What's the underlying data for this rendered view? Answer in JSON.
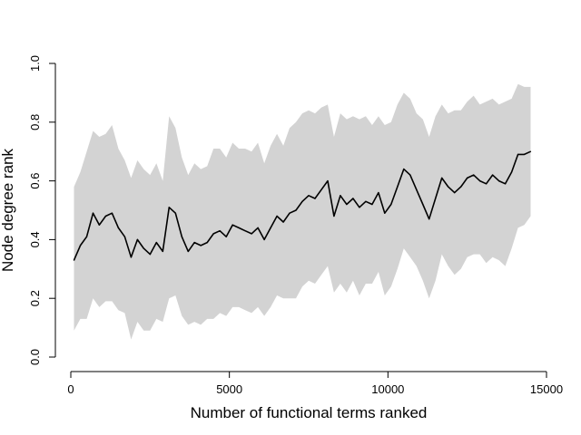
{
  "chart_data": {
    "type": "line",
    "title": "",
    "xlabel": "Number of functional terms ranked",
    "ylabel": "Node degree rank",
    "xlim": [
      0,
      15000
    ],
    "ylim": [
      0.0,
      1.0
    ],
    "x_ticks": [
      0,
      5000,
      10000,
      15000
    ],
    "y_ticks": [
      0.0,
      0.2,
      0.4,
      0.6,
      0.8,
      1.0
    ],
    "x_tick_labels": [
      "0",
      "5000",
      "10000",
      "15000"
    ],
    "y_tick_labels": [
      "0.0",
      "0.2",
      "0.4",
      "0.6",
      "0.8",
      "1.0"
    ],
    "grid": false,
    "legend": "none",
    "colors": {
      "line": "#000000",
      "band": "#d3d3d3"
    },
    "series": [
      {
        "role": "line",
        "x": [
          100,
          300,
          500,
          700,
          900,
          1100,
          1300,
          1500,
          1700,
          1900,
          2100,
          2300,
          2500,
          2700,
          2900,
          3100,
          3300,
          3500,
          3700,
          3900,
          4100,
          4300,
          4500,
          4700,
          4900,
          5100,
          5300,
          5500,
          5700,
          5900,
          6100,
          6300,
          6500,
          6700,
          6900,
          7100,
          7300,
          7500,
          7700,
          7900,
          8100,
          8300,
          8500,
          8700,
          8900,
          9100,
          9300,
          9500,
          9700,
          9900,
          10100,
          10300,
          10500,
          10700,
          10900,
          11100,
          11300,
          11500,
          11700,
          11900,
          12100,
          12300,
          12500,
          12700,
          12900,
          13100,
          13300,
          13500,
          13700,
          13900,
          14100,
          14300,
          14500
        ],
        "y": [
          0.33,
          0.38,
          0.41,
          0.49,
          0.45,
          0.48,
          0.49,
          0.44,
          0.41,
          0.34,
          0.4,
          0.37,
          0.35,
          0.39,
          0.36,
          0.51,
          0.49,
          0.41,
          0.36,
          0.39,
          0.38,
          0.39,
          0.42,
          0.43,
          0.41,
          0.45,
          0.44,
          0.43,
          0.42,
          0.44,
          0.4,
          0.44,
          0.48,
          0.46,
          0.49,
          0.5,
          0.53,
          0.55,
          0.54,
          0.57,
          0.6,
          0.48,
          0.55,
          0.52,
          0.54,
          0.51,
          0.53,
          0.52,
          0.56,
          0.49,
          0.52,
          0.58,
          0.64,
          0.62,
          0.57,
          0.52,
          0.47,
          0.54,
          0.61,
          0.58,
          0.56,
          0.58,
          0.61,
          0.62,
          0.6,
          0.59,
          0.62,
          0.6,
          0.59,
          0.63,
          0.69,
          0.69,
          0.7
        ]
      },
      {
        "role": "band",
        "x": [
          100,
          300,
          500,
          700,
          900,
          1100,
          1300,
          1500,
          1700,
          1900,
          2100,
          2300,
          2500,
          2700,
          2900,
          3100,
          3300,
          3500,
          3700,
          3900,
          4100,
          4300,
          4500,
          4700,
          4900,
          5100,
          5300,
          5500,
          5700,
          5900,
          6100,
          6300,
          6500,
          6700,
          6900,
          7100,
          7300,
          7500,
          7700,
          7900,
          8100,
          8300,
          8500,
          8700,
          8900,
          9100,
          9300,
          9500,
          9700,
          9900,
          10100,
          10300,
          10500,
          10700,
          10900,
          11100,
          11300,
          11500,
          11700,
          11900,
          12100,
          12300,
          12500,
          12700,
          12900,
          13100,
          13300,
          13500,
          13700,
          13900,
          14100,
          14300,
          14500
        ],
        "upper": [
          0.58,
          0.63,
          0.7,
          0.77,
          0.75,
          0.76,
          0.79,
          0.71,
          0.67,
          0.61,
          0.67,
          0.64,
          0.62,
          0.66,
          0.6,
          0.82,
          0.78,
          0.68,
          0.62,
          0.66,
          0.64,
          0.65,
          0.71,
          0.71,
          0.68,
          0.73,
          0.71,
          0.71,
          0.7,
          0.73,
          0.66,
          0.72,
          0.76,
          0.72,
          0.78,
          0.8,
          0.83,
          0.84,
          0.83,
          0.85,
          0.86,
          0.75,
          0.83,
          0.81,
          0.82,
          0.81,
          0.82,
          0.79,
          0.82,
          0.79,
          0.8,
          0.86,
          0.9,
          0.88,
          0.83,
          0.81,
          0.75,
          0.82,
          0.86,
          0.83,
          0.84,
          0.84,
          0.87,
          0.89,
          0.86,
          0.87,
          0.88,
          0.86,
          0.87,
          0.88,
          0.93,
          0.92,
          0.92
        ],
        "lower": [
          0.09,
          0.13,
          0.13,
          0.2,
          0.17,
          0.19,
          0.19,
          0.16,
          0.15,
          0.06,
          0.12,
          0.09,
          0.09,
          0.13,
          0.12,
          0.2,
          0.21,
          0.14,
          0.11,
          0.12,
          0.11,
          0.13,
          0.13,
          0.15,
          0.14,
          0.17,
          0.17,
          0.16,
          0.15,
          0.17,
          0.14,
          0.17,
          0.21,
          0.2,
          0.2,
          0.2,
          0.24,
          0.26,
          0.25,
          0.28,
          0.31,
          0.22,
          0.25,
          0.22,
          0.26,
          0.21,
          0.25,
          0.25,
          0.29,
          0.21,
          0.24,
          0.3,
          0.37,
          0.34,
          0.31,
          0.26,
          0.2,
          0.26,
          0.35,
          0.31,
          0.28,
          0.3,
          0.34,
          0.35,
          0.35,
          0.32,
          0.34,
          0.33,
          0.31,
          0.37,
          0.44,
          0.45,
          0.48
        ]
      }
    ]
  }
}
